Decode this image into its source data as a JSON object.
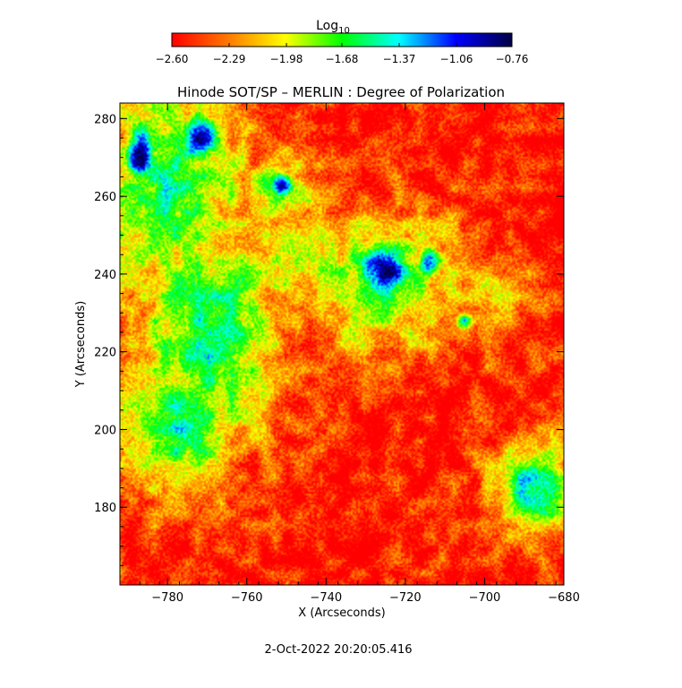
{
  "chart_data": {
    "type": "heatmap",
    "title": "Hinode SOT/SP – MERLIN : Degree of Polarization",
    "xlabel": "X (Arcseconds)",
    "ylabel": "Y (Arcseconds)",
    "xlim": [
      -792,
      -680
    ],
    "ylim": [
      160,
      284
    ],
    "x_ticks": [
      -780,
      -760,
      -740,
      -720,
      -700,
      -680
    ],
    "y_ticks": [
      180,
      200,
      220,
      240,
      260,
      280
    ],
    "colorbar": {
      "title_main": "Log",
      "title_sub": "10",
      "range": [
        -2.6,
        -0.76
      ],
      "tick_values": [
        -2.6,
        -2.29,
        -1.98,
        -1.68,
        -1.37,
        -1.06,
        -0.76
      ],
      "tick_labels": [
        "−2.60",
        "−2.29",
        "−1.98",
        "−1.68",
        "−1.37",
        "−1.06",
        "−0.76"
      ],
      "colors": [
        "#ff0000",
        "#ff7a00",
        "#ffff00",
        "#00ff00",
        "#00ffff",
        "#0000ff",
        "#000044"
      ]
    },
    "background_value": -2.55,
    "features": [
      {
        "x": -725,
        "y": 241,
        "sx": 4.8,
        "sy": 5.5,
        "peak": -0.8
      },
      {
        "x": -714,
        "y": 243,
        "sx": 2.2,
        "sy": 3.0,
        "peak": -1.05
      },
      {
        "x": -705,
        "y": 228,
        "sx": 1.5,
        "sy": 1.5,
        "peak": -1.45
      },
      {
        "x": -751,
        "y": 263,
        "sx": 2.3,
        "sy": 2.5,
        "peak": -0.95
      },
      {
        "x": -787,
        "y": 271,
        "sx": 2.8,
        "sy": 6.0,
        "peak": -0.9
      },
      {
        "x": -772,
        "y": 275,
        "sx": 3.5,
        "sy": 5.0,
        "peak": -0.95
      },
      {
        "x": -726,
        "y": 238,
        "sx": 14,
        "sy": 13,
        "peak": -1.7
      },
      {
        "x": -752,
        "y": 262,
        "sx": 7,
        "sy": 7,
        "peak": -1.8
      },
      {
        "x": -780,
        "y": 262,
        "sx": 14,
        "sy": 20,
        "peak": -1.6
      },
      {
        "x": -770,
        "y": 225,
        "sx": 13,
        "sy": 20,
        "peak": -1.5
      },
      {
        "x": -778,
        "y": 200,
        "sx": 11,
        "sy": 12,
        "peak": -1.5
      },
      {
        "x": -688,
        "y": 184,
        "sx": 7,
        "sy": 9,
        "peak": -1.45
      },
      {
        "x": -752,
        "y": 243,
        "sx": 18,
        "sy": 14,
        "peak": -2.0
      },
      {
        "x": -700,
        "y": 235,
        "sx": 10,
        "sy": 8,
        "peak": -2.15
      }
    ],
    "timestamp": "2-Oct-2022 20:20:05.416"
  }
}
